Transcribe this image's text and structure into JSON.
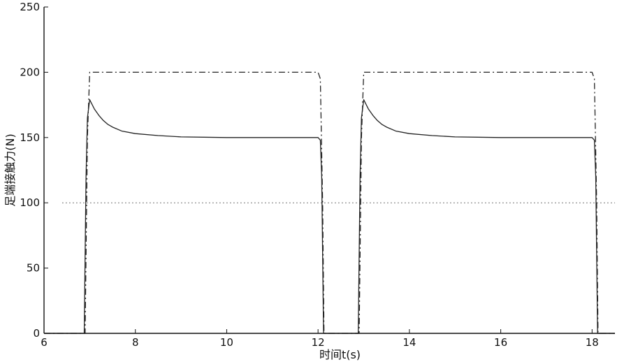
{
  "chart_data": {
    "type": "line",
    "title": "",
    "xlabel": "时间t(s)",
    "ylabel": "足端接触力(N)",
    "xlim": [
      6,
      18.5
    ],
    "ylim": [
      0,
      250
    ],
    "xticks": [
      6,
      8,
      10,
      12,
      14,
      16,
      18
    ],
    "yticks": [
      0,
      50,
      100,
      150,
      200,
      250
    ],
    "x_tick_labels": [
      "6",
      "8",
      "10",
      "12",
      "14",
      "16",
      "18"
    ],
    "y_tick_labels": [
      "0",
      "50",
      "100",
      "150",
      "200",
      "250"
    ],
    "grid": false,
    "legend": "none",
    "series": [
      {
        "style": "solid",
        "color": "#222222",
        "points": [
          [
            6.0,
            0
          ],
          [
            6.88,
            0
          ],
          [
            6.9,
            60
          ],
          [
            6.92,
            120
          ],
          [
            6.95,
            165
          ],
          [
            7.0,
            179
          ],
          [
            7.1,
            172
          ],
          [
            7.2,
            167
          ],
          [
            7.3,
            163
          ],
          [
            7.4,
            160
          ],
          [
            7.5,
            158
          ],
          [
            7.7,
            155
          ],
          [
            8.0,
            153
          ],
          [
            8.5,
            151.5
          ],
          [
            9.0,
            150.5
          ],
          [
            10.0,
            150
          ],
          [
            11.0,
            150
          ],
          [
            12.0,
            150
          ],
          [
            12.05,
            148
          ],
          [
            12.08,
            120
          ],
          [
            12.1,
            60
          ],
          [
            12.12,
            0
          ],
          [
            12.88,
            0
          ],
          [
            12.9,
            60
          ],
          [
            12.92,
            120
          ],
          [
            12.95,
            165
          ],
          [
            13.0,
            179
          ],
          [
            13.1,
            172
          ],
          [
            13.2,
            167
          ],
          [
            13.3,
            163
          ],
          [
            13.4,
            160
          ],
          [
            13.5,
            158
          ],
          [
            13.7,
            155
          ],
          [
            14.0,
            153
          ],
          [
            14.5,
            151.5
          ],
          [
            15.0,
            150.5
          ],
          [
            16.0,
            150
          ],
          [
            17.0,
            150
          ],
          [
            18.0,
            150
          ],
          [
            18.05,
            148
          ],
          [
            18.08,
            120
          ],
          [
            18.1,
            60
          ],
          [
            18.12,
            0
          ],
          [
            18.5,
            0
          ]
        ]
      },
      {
        "style": "dashdot",
        "color": "#222222",
        "points": [
          [
            6.0,
            0
          ],
          [
            6.9,
            0
          ],
          [
            6.95,
            150
          ],
          [
            7.0,
            200
          ],
          [
            12.0,
            200
          ],
          [
            12.05,
            195
          ],
          [
            12.1,
            100
          ],
          [
            12.13,
            0
          ],
          [
            12.9,
            0
          ],
          [
            12.95,
            150
          ],
          [
            13.0,
            200
          ],
          [
            18.0,
            200
          ],
          [
            18.05,
            195
          ],
          [
            18.1,
            100
          ],
          [
            18.13,
            0
          ],
          [
            18.5,
            0
          ]
        ]
      },
      {
        "style": "dotted",
        "color": "#444444",
        "points": [
          [
            6.4,
            100
          ],
          [
            18.5,
            100
          ]
        ]
      }
    ]
  }
}
